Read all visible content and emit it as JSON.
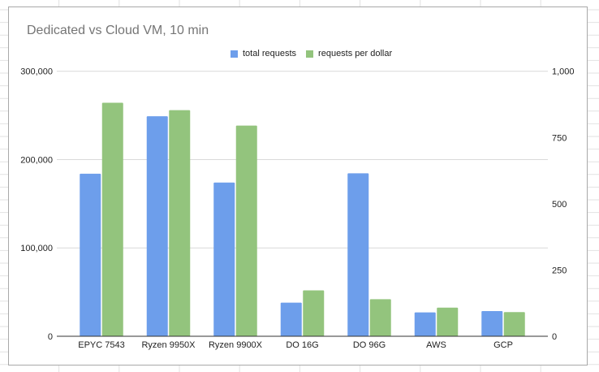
{
  "chart": {
    "title": "Dedicated vs Cloud VM, 10 min",
    "legend": [
      {
        "label": "total requests",
        "color": "#6d9eeb"
      },
      {
        "label": "requests per dollar",
        "color": "#93c47d"
      }
    ]
  },
  "chart_data": {
    "type": "bar",
    "title": "Dedicated vs Cloud VM, 10 min",
    "xlabel": "",
    "ylabel": "",
    "categories": [
      "EPYC 7543",
      "Ryzen 9950X",
      "Ryzen 9900X",
      "DO 16G",
      "DO 96G",
      "AWS",
      "GCP"
    ],
    "series": [
      {
        "name": "total requests",
        "axis": "left",
        "color": "#6d9eeb",
        "values": [
          184000,
          249000,
          174000,
          38000,
          184500,
          27000,
          28500
        ]
      },
      {
        "name": "requests per dollar",
        "axis": "right",
        "color": "#93c47d",
        "values": [
          881,
          853,
          795,
          173,
          140,
          108,
          91
        ]
      }
    ],
    "ylim": [
      0,
      300000
    ],
    "y2lim": [
      0,
      1000
    ],
    "left_ticks": [
      "0",
      "100,000",
      "200,000",
      "300,000"
    ],
    "right_ticks": [
      "0",
      "250",
      "500",
      "750",
      "1,000"
    ],
    "legend_position": "top",
    "grid": true
  }
}
